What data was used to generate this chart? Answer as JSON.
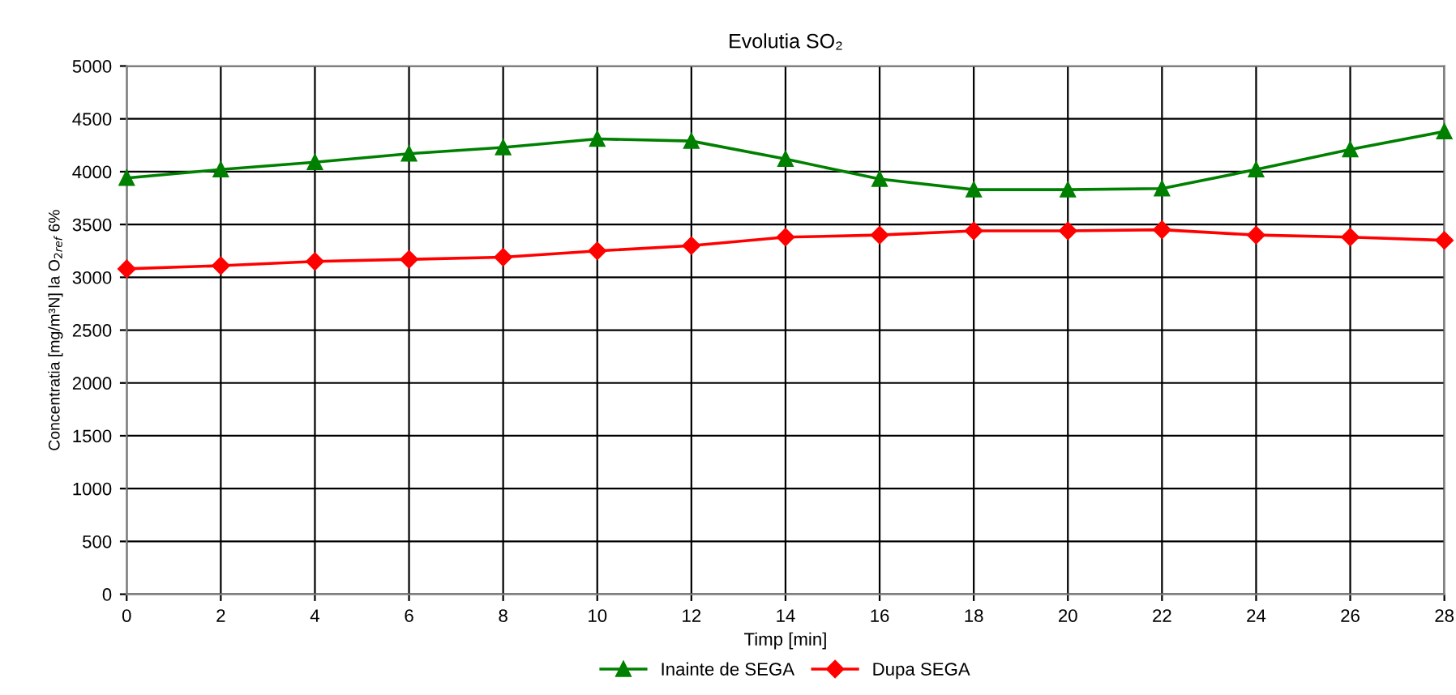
{
  "chart_data": {
    "type": "line",
    "title": "Evolutia SO₂",
    "xlabel": "Timp [min]",
    "ylabel": "Concentratia [mg/m³N] la O$_{2ref}$ 6%",
    "x": [
      0,
      2,
      4,
      6,
      8,
      10,
      12,
      14,
      16,
      18,
      20,
      22,
      24,
      26,
      28
    ],
    "series": [
      {
        "name": "Inainte de SEGA",
        "color": "#008000",
        "marker": "triangle",
        "values": [
          3940,
          4020,
          4090,
          4170,
          4230,
          4310,
          4290,
          4120,
          3930,
          3830,
          3830,
          3840,
          4020,
          4210,
          4380
        ]
      },
      {
        "name": "Dupa SEGA",
        "color": "#ff0000",
        "marker": "diamond",
        "values": [
          3080,
          3110,
          3150,
          3170,
          3190,
          3250,
          3300,
          3380,
          3400,
          3440,
          3440,
          3450,
          3400,
          3380,
          3350
        ]
      }
    ],
    "xlim": [
      0,
      28
    ],
    "xticks": [
      0,
      2,
      4,
      6,
      8,
      10,
      12,
      14,
      16,
      18,
      20,
      22,
      24,
      26,
      28
    ],
    "ylim": [
      0,
      5000
    ],
    "yticks": [
      0,
      500,
      1000,
      1500,
      2000,
      2500,
      3000,
      3500,
      4000,
      4500,
      5000
    ],
    "grid": true,
    "legend": "bottom",
    "line_style": "solid"
  }
}
